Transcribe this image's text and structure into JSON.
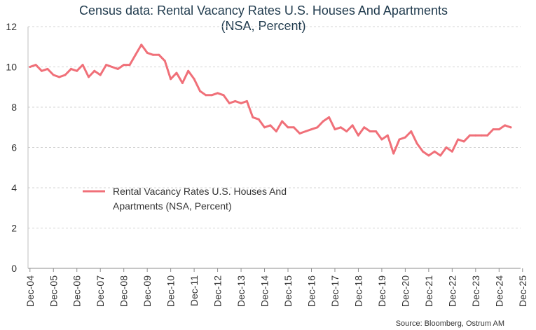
{
  "chart_data": {
    "type": "line",
    "title_line1": "Census data: Rental Vacancy Rates U.S. Houses And Apartments",
    "title_line2": "(NSA, Percent)",
    "xlabel": "",
    "ylabel": "",
    "ylim": [
      0,
      12
    ],
    "y_ticks": [
      "0",
      "2",
      "4",
      "6",
      "8",
      "10",
      "12"
    ],
    "x_tick_labels": [
      "Dec-04",
      "Dec-05",
      "Dec-06",
      "Dec-07",
      "Dec-08",
      "Dec-09",
      "Dec-10",
      "Dec-11",
      "Dec-12",
      "Dec-13",
      "Dec-14",
      "Dec-15",
      "Dec-16",
      "Dec-17",
      "Dec-18",
      "Dec-19",
      "Dec-20",
      "Dec-21",
      "Dec-22",
      "Dec-23",
      "Dec-24",
      "Dec-25"
    ],
    "x_range_years": [
      2004.917,
      2025.917
    ],
    "grid": "horizontal",
    "legend_placement": "center-left",
    "series": [
      {
        "name": "Rental Vacancy Rates U.S. Houses And Apartments (NSA, Percent)",
        "color": "#f07079",
        "points": [
          [
            "Dec-04",
            10.0
          ],
          [
            "Mar-05",
            10.1
          ],
          [
            "Jun-05",
            9.8
          ],
          [
            "Sep-05",
            9.9
          ],
          [
            "Dec-05",
            9.6
          ],
          [
            "Mar-06",
            9.5
          ],
          [
            "Jun-06",
            9.6
          ],
          [
            "Sep-06",
            9.9
          ],
          [
            "Dec-06",
            9.8
          ],
          [
            "Mar-07",
            10.1
          ],
          [
            "Jun-07",
            9.5
          ],
          [
            "Sep-07",
            9.8
          ],
          [
            "Dec-07",
            9.6
          ],
          [
            "Mar-08",
            10.1
          ],
          [
            "Jun-08",
            10.0
          ],
          [
            "Sep-08",
            9.9
          ],
          [
            "Dec-08",
            10.1
          ],
          [
            "Mar-09",
            10.1
          ],
          [
            "Jun-09",
            10.6
          ],
          [
            "Sep-09",
            11.1
          ],
          [
            "Dec-09",
            10.7
          ],
          [
            "Mar-10",
            10.6
          ],
          [
            "Jun-10",
            10.6
          ],
          [
            "Sep-10",
            10.3
          ],
          [
            "Dec-10",
            9.4
          ],
          [
            "Mar-11",
            9.7
          ],
          [
            "Jun-11",
            9.2
          ],
          [
            "Sep-11",
            9.8
          ],
          [
            "Dec-11",
            9.4
          ],
          [
            "Mar-12",
            8.8
          ],
          [
            "Jun-12",
            8.6
          ],
          [
            "Sep-12",
            8.6
          ],
          [
            "Dec-12",
            8.7
          ],
          [
            "Mar-13",
            8.6
          ],
          [
            "Jun-13",
            8.2
          ],
          [
            "Sep-13",
            8.3
          ],
          [
            "Dec-13",
            8.2
          ],
          [
            "Mar-14",
            8.3
          ],
          [
            "Jun-14",
            7.5
          ],
          [
            "Sep-14",
            7.4
          ],
          [
            "Dec-14",
            7.0
          ],
          [
            "Mar-15",
            7.1
          ],
          [
            "Jun-15",
            6.8
          ],
          [
            "Sep-15",
            7.3
          ],
          [
            "Dec-15",
            7.0
          ],
          [
            "Mar-16",
            7.0
          ],
          [
            "Jun-16",
            6.7
          ],
          [
            "Sep-16",
            6.8
          ],
          [
            "Dec-16",
            6.9
          ],
          [
            "Mar-17",
            7.0
          ],
          [
            "Jun-17",
            7.3
          ],
          [
            "Sep-17",
            7.5
          ],
          [
            "Dec-17",
            6.9
          ],
          [
            "Mar-18",
            7.0
          ],
          [
            "Jun-18",
            6.8
          ],
          [
            "Sep-18",
            7.1
          ],
          [
            "Dec-18",
            6.6
          ],
          [
            "Mar-19",
            7.0
          ],
          [
            "Jun-19",
            6.8
          ],
          [
            "Sep-19",
            6.8
          ],
          [
            "Dec-19",
            6.4
          ],
          [
            "Mar-20",
            6.6
          ],
          [
            "Jun-20",
            5.7
          ],
          [
            "Sep-20",
            6.4
          ],
          [
            "Dec-20",
            6.5
          ],
          [
            "Mar-21",
            6.8
          ],
          [
            "Jun-21",
            6.2
          ],
          [
            "Sep-21",
            5.8
          ],
          [
            "Dec-21",
            5.6
          ],
          [
            "Mar-22",
            5.8
          ],
          [
            "Jun-22",
            5.6
          ],
          [
            "Sep-22",
            6.0
          ],
          [
            "Dec-22",
            5.8
          ],
          [
            "Mar-23",
            6.4
          ],
          [
            "Jun-23",
            6.3
          ],
          [
            "Sep-23",
            6.6
          ],
          [
            "Dec-23",
            6.6
          ],
          [
            "Mar-24",
            6.6
          ],
          [
            "Jun-24",
            6.6
          ],
          [
            "Sep-24",
            6.9
          ],
          [
            "Dec-24",
            6.9
          ],
          [
            "Mar-25",
            7.1
          ],
          [
            "Jun-25",
            7.0
          ]
        ]
      }
    ],
    "legend_line1": "Rental Vacancy Rates U.S. Houses And",
    "legend_line2": "Apartments (NSA, Percent)",
    "source": "Source: Bloomberg, Ostrum AM"
  }
}
